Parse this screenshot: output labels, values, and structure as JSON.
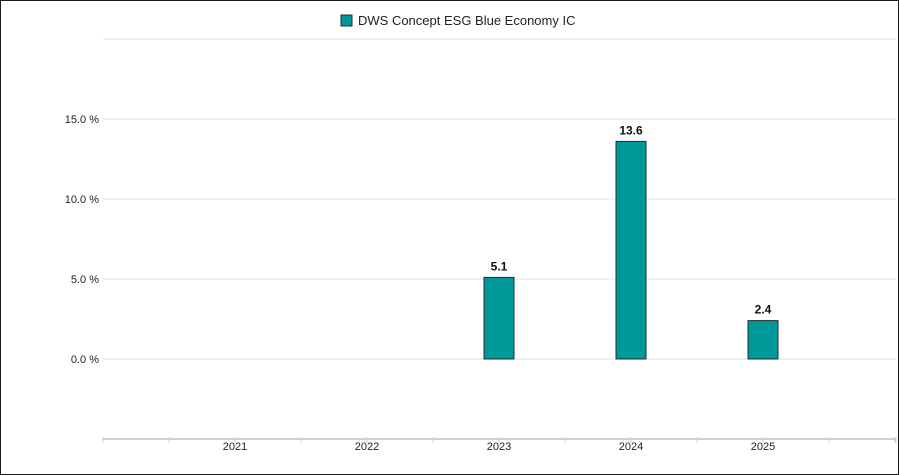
{
  "colors": {
    "bar": "#009999",
    "bar_stroke": "#1f2f2f",
    "grid": "#e3e3e3",
    "axis": "#d0d0d0"
  },
  "chart_data": {
    "type": "bar",
    "categories": [
      "2021",
      "2022",
      "2023",
      "2024",
      "2025"
    ],
    "series": [
      {
        "name": "DWS Concept ESG Blue Economy IC",
        "values": [
          null,
          null,
          5.1,
          13.6,
          2.4
        ],
        "labels": [
          "",
          "",
          "5.1",
          "13.6",
          "2.4"
        ]
      }
    ],
    "y_ticks": [
      0,
      5,
      10,
      15
    ],
    "y_tick_labels": [
      "0.0 %",
      "5.0 %",
      "10.0 %",
      "15.0 %"
    ],
    "ylim": [
      -5,
      20
    ],
    "grid": true,
    "legend_position": "top-center"
  }
}
